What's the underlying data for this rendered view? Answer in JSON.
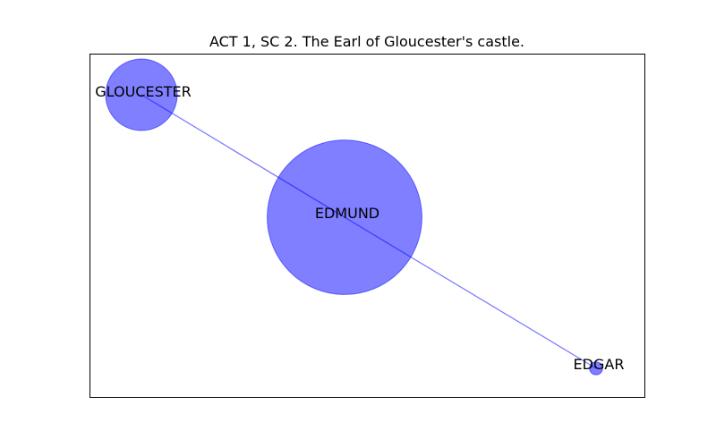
{
  "title": "ACT 1, SC 2. The Earl of Gloucester's castle.",
  "colors": {
    "node_fill": "#0000ff",
    "edge": "#0000ff",
    "frame": "#000000",
    "label": "#000000"
  },
  "chart_data": {
    "type": "network",
    "title": "ACT 1, SC 2. The Earl of Gloucester's castle.",
    "nodes": [
      {
        "id": "GLOUCESTER",
        "label": "GLOUCESTER",
        "weight": 3
      },
      {
        "id": "EDMUND",
        "label": "EDMUND",
        "weight": 14
      },
      {
        "id": "EDGAR",
        "label": "EDGAR",
        "weight": 0.1
      }
    ],
    "edges": [
      {
        "source": "GLOUCESTER",
        "target": "EDMUND"
      },
      {
        "source": "EDMUND",
        "target": "EDGAR"
      }
    ],
    "grid": false,
    "axes_ticks": false
  }
}
